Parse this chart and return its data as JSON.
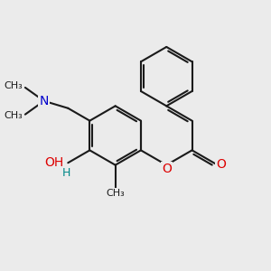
{
  "bg_color": "#ebebeb",
  "bond_color": "#1a1a1a",
  "bond_width": 1.5,
  "atom_colors": {
    "O_red": "#dd0000",
    "N_blue": "#0000cc",
    "C_black": "#1a1a1a"
  },
  "font_size_main": 10,
  "font_size_small": 9,
  "xlim": [
    0,
    10
  ],
  "ylim": [
    0,
    10
  ]
}
